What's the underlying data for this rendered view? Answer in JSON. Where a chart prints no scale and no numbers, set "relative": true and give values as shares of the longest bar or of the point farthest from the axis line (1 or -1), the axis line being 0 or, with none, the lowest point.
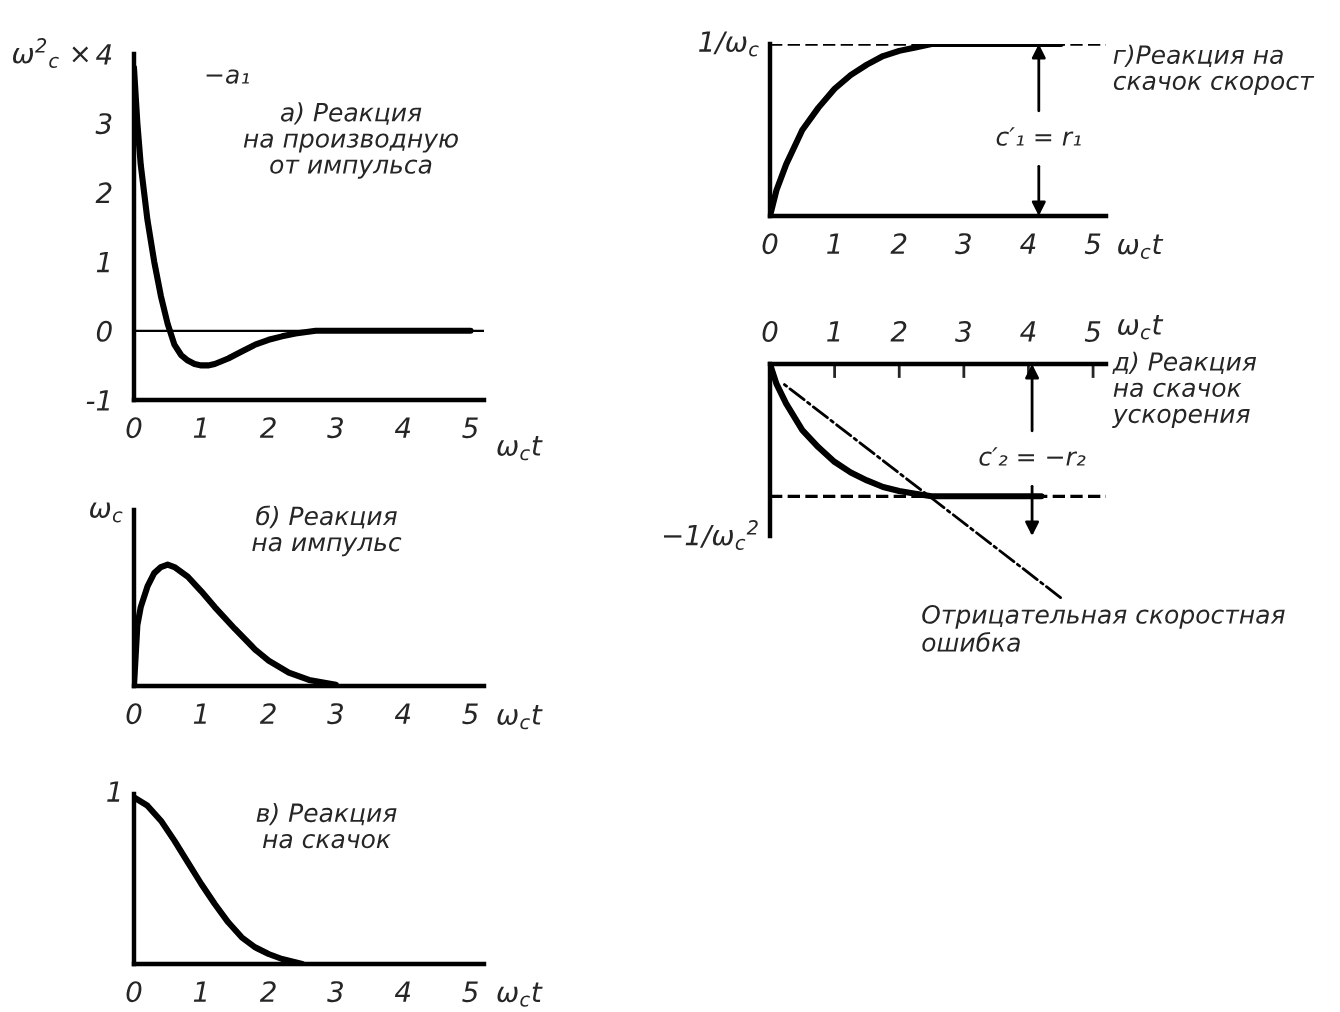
{
  "chart_data": [
    {
      "type": "line",
      "ylabel": "ω$^{2}$$_{c}$ ×",
      "xlabel": "ω$_{c}$t",
      "x": [
        0,
        0.05,
        0.1,
        0.2,
        0.3,
        0.4,
        0.5,
        0.6,
        0.7,
        0.8,
        0.9,
        1.0,
        1.1,
        1.2,
        1.4,
        1.6,
        1.8,
        2.0,
        2.2,
        2.4,
        2.7,
        3,
        5
      ],
      "values": [
        3.8,
        3.0,
        2.4,
        1.6,
        1.0,
        0.5,
        0.1,
        -0.2,
        -0.35,
        -0.43,
        -0.48,
        -0.5,
        -0.5,
        -0.48,
        -0.4,
        -0.3,
        -0.2,
        -0.13,
        -0.08,
        -0.04,
        0,
        0,
        0
      ],
      "color": "#000000",
      "xlim": [
        0,
        5.2
      ],
      "xticks": [
        0,
        1,
        2,
        3,
        4,
        5
      ],
      "ylim": [
        -1,
        4
      ],
      "yticks": [
        -1,
        0,
        1,
        2,
        3,
        4
      ],
      "ref_lines": [
        {
          "axis": "y",
          "value": 0
        }
      ],
      "annotations": [
        "а) Реакция\nна производную\nот импульса",
        "−a₁"
      ]
    },
    {
      "type": "line",
      "relative": true,
      "ylabel": "ω$_{c}$",
      "xlabel": "ω$_{c}$t",
      "x": [
        0,
        0.05,
        0.1,
        0.2,
        0.3,
        0.4,
        0.5,
        0.6,
        0.8,
        1.0,
        1.2,
        1.5,
        1.8,
        2.0,
        2.3,
        2.6,
        3.0
      ],
      "values": [
        0,
        0.5,
        0.65,
        0.82,
        0.93,
        0.98,
        1,
        0.98,
        0.9,
        0.78,
        0.65,
        0.47,
        0.3,
        0.21,
        0.11,
        0.05,
        0.01
      ],
      "color": "#000000",
      "xlim": [
        0,
        5.2
      ],
      "xticks": [
        0,
        1,
        2,
        3,
        4,
        5
      ],
      "annotations": [
        "б) Реакция\nна импульс"
      ]
    },
    {
      "type": "line",
      "relative": true,
      "ylabel": "1",
      "xlabel": "ω$_{c}$t",
      "x": [
        0,
        0.2,
        0.4,
        0.6,
        0.8,
        1.0,
        1.2,
        1.4,
        1.6,
        1.8,
        2.0,
        2.2,
        2.5
      ],
      "values": [
        1,
        0.95,
        0.86,
        0.74,
        0.61,
        0.48,
        0.36,
        0.25,
        0.16,
        0.1,
        0.06,
        0.03,
        0
      ],
      "color": "#000000",
      "xlim": [
        0,
        5.2
      ],
      "xticks": [
        0,
        1,
        2,
        3,
        4,
        5
      ],
      "annotations": [
        "в) Реакция\nна скачок"
      ]
    },
    {
      "type": "line",
      "relative": true,
      "ylabel": "1/ω$_{c}$",
      "xlabel": "ω$_{c}$t",
      "x": [
        0,
        0.1,
        0.25,
        0.5,
        0.75,
        1,
        1.25,
        1.5,
        1.75,
        2,
        2.25,
        2.5,
        4.5
      ],
      "values": [
        0,
        0.15,
        0.3,
        0.5,
        0.63,
        0.74,
        0.82,
        0.88,
        0.93,
        0.96,
        0.98,
        1,
        1
      ],
      "color": "#000000",
      "xlim": [
        0,
        5.2
      ],
      "xticks": [
        0,
        1,
        2,
        3,
        4,
        5
      ],
      "ref_lines": [
        {
          "axis": "y",
          "value": 1,
          "line_style": "dashed"
        }
      ],
      "annotations": [
        "г)Реакция на\nскачок скорост",
        "c′₁ = r₁"
      ]
    },
    {
      "type": "line",
      "relative": true,
      "ylabel": "−1/ω$_{c}$$^{2}$",
      "xlabel": "ω$_{c}$t",
      "x": [
        0,
        0.1,
        0.25,
        0.5,
        0.75,
        1,
        1.25,
        1.5,
        1.75,
        2,
        2.25,
        2.5,
        4.2
      ],
      "values": [
        0,
        -0.15,
        -0.3,
        -0.5,
        -0.63,
        -0.74,
        -0.82,
        -0.88,
        -0.93,
        -0.96,
        -0.98,
        -1,
        -1
      ],
      "color": "#000000",
      "xlim": [
        0,
        5.2
      ],
      "xticks": [
        0,
        1,
        2,
        3,
        4,
        5
      ],
      "ref_lines": [
        {
          "axis": "y",
          "value": -1,
          "line_style": "dashed"
        }
      ],
      "annotations": [
        "д) Реакция\nна скачок\nускорения",
        "c′₂ = −r₂",
        "Отрицательная скоростная\nошибка"
      ]
    }
  ]
}
